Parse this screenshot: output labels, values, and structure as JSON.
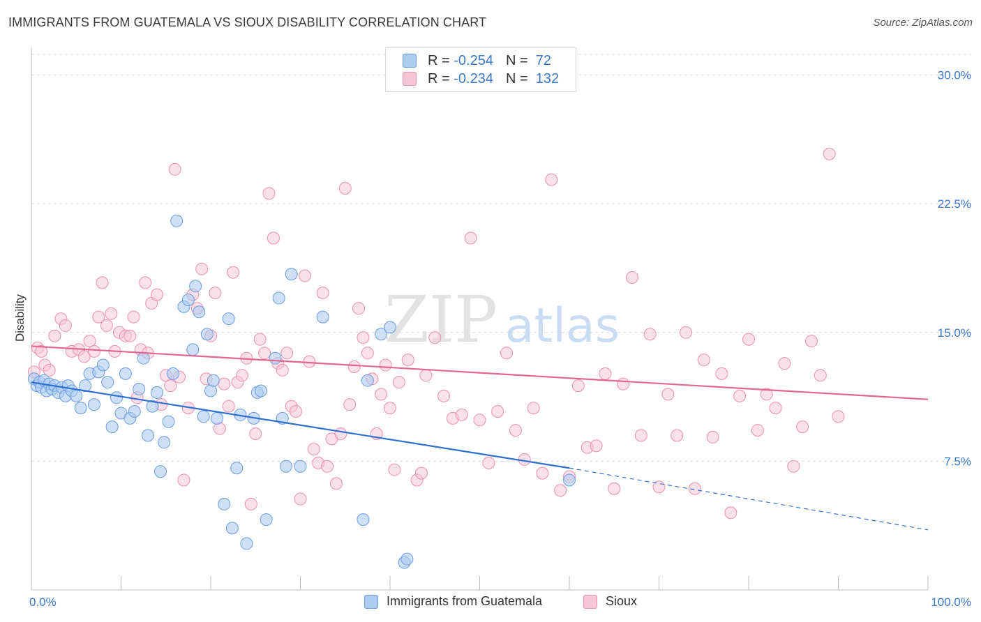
{
  "title": "IMMIGRANTS FROM GUATEMALA VS SIOUX DISABILITY CORRELATION CHART",
  "source": "Source: ZipAtlas.com",
  "watermark": {
    "zip": "ZIP",
    "atlas": "atlas"
  },
  "legend": {
    "rows": [
      {
        "r_label": "R =",
        "r_value": "-0.254",
        "n_label": "N =",
        "n_value": "72"
      },
      {
        "r_label": "R =",
        "r_value": "-0.234",
        "n_label": "N =",
        "n_value": "132"
      }
    ]
  },
  "colors": {
    "blue_fill": "#aecbf0",
    "blue_stroke": "#6a9be0",
    "blue_line": "#2f6fd0",
    "pink_fill": "#f6c6d6",
    "pink_stroke": "#ea8fae",
    "pink_line": "#e0668f",
    "axis_label": "#3a78c9"
  },
  "chart_data": {
    "type": "scatter",
    "title": "IMMIGRANTS FROM GUATEMALA VS SIOUX DISABILITY CORRELATION CHART",
    "xlabel": "",
    "ylabel": "Disability",
    "xlim": [
      0,
      100
    ],
    "ylim": [
      0,
      31.2
    ],
    "x_tick_labels": [
      "0.0%",
      "100.0%"
    ],
    "y_ticks": [
      7.5,
      15.0,
      22.5,
      30.0
    ],
    "y_tick_labels": [
      "7.5%",
      "15.0%",
      "22.5%",
      "30.0%"
    ],
    "grid": "horizontal dashed",
    "legend_position": "top-center",
    "series": [
      {
        "name": "Immigrants from Guatemala",
        "color": "#aecbf0",
        "trend": {
          "x0": 0,
          "y0": 12.1,
          "x1": 60,
          "y1": 7.1,
          "dashed_to_x": 100,
          "dashed_to_y": 3.5
        },
        "points": [
          [
            0.3,
            12.3
          ],
          [
            0.6,
            11.9
          ],
          [
            0.9,
            12.1
          ],
          [
            1.1,
            11.8
          ],
          [
            1.4,
            12.2
          ],
          [
            1.7,
            11.6
          ],
          [
            2.0,
            12.0
          ],
          [
            2.3,
            11.7
          ],
          [
            2.6,
            11.9
          ],
          [
            3.0,
            11.5
          ],
          [
            3.4,
            11.8
          ],
          [
            3.8,
            11.3
          ],
          [
            4.1,
            11.9
          ],
          [
            4.5,
            11.6
          ],
          [
            5.0,
            11.3
          ],
          [
            5.5,
            10.6
          ],
          [
            6.0,
            11.9
          ],
          [
            6.5,
            12.6
          ],
          [
            7.0,
            10.8
          ],
          [
            7.5,
            12.7
          ],
          [
            8.0,
            13.1
          ],
          [
            8.5,
            12.1
          ],
          [
            9.0,
            9.5
          ],
          [
            9.5,
            11.2
          ],
          [
            10.0,
            10.3
          ],
          [
            10.5,
            12.6
          ],
          [
            11.0,
            10.0
          ],
          [
            11.5,
            10.4
          ],
          [
            12.0,
            11.7
          ],
          [
            12.5,
            13.5
          ],
          [
            13.0,
            9.0
          ],
          [
            13.5,
            10.7
          ],
          [
            14.0,
            11.5
          ],
          [
            14.4,
            6.9
          ],
          [
            14.8,
            8.6
          ],
          [
            15.3,
            9.8
          ],
          [
            15.8,
            12.6
          ],
          [
            16.2,
            21.5
          ],
          [
            17.0,
            16.5
          ],
          [
            17.5,
            16.9
          ],
          [
            18.0,
            14.0
          ],
          [
            18.3,
            17.7
          ],
          [
            18.7,
            16.2
          ],
          [
            19.2,
            10.1
          ],
          [
            19.6,
            14.9
          ],
          [
            20.0,
            11.6
          ],
          [
            20.3,
            12.2
          ],
          [
            20.7,
            10.0
          ],
          [
            21.5,
            5.0
          ],
          [
            22.0,
            15.8
          ],
          [
            22.4,
            3.6
          ],
          [
            22.9,
            7.1
          ],
          [
            23.3,
            10.2
          ],
          [
            24.0,
            2.7
          ],
          [
            24.8,
            10.0
          ],
          [
            25.2,
            11.5
          ],
          [
            25.6,
            11.6
          ],
          [
            26.2,
            4.1
          ],
          [
            27.2,
            13.5
          ],
          [
            27.6,
            17.0
          ],
          [
            28.0,
            10.0
          ],
          [
            28.4,
            7.2
          ],
          [
            29.0,
            18.4
          ],
          [
            30.0,
            7.2
          ],
          [
            32.5,
            15.9
          ],
          [
            37.0,
            4.1
          ],
          [
            37.5,
            12.2
          ],
          [
            39.0,
            14.9
          ],
          [
            40.0,
            15.3
          ],
          [
            41.6,
            1.6
          ],
          [
            41.9,
            1.8
          ],
          [
            60.0,
            6.4
          ]
        ]
      },
      {
        "name": "Sioux",
        "color": "#f6c6d6",
        "trend": {
          "x0": 0,
          "y0": 14.2,
          "x1": 100,
          "y1": 11.1
        },
        "points": [
          [
            0.3,
            12.7
          ],
          [
            0.7,
            14.1
          ],
          [
            1.1,
            13.9
          ],
          [
            1.5,
            13.1
          ],
          [
            2.0,
            12.8
          ],
          [
            2.6,
            14.8
          ],
          [
            3.3,
            15.8
          ],
          [
            3.8,
            15.4
          ],
          [
            4.5,
            13.9
          ],
          [
            5.3,
            14.0
          ],
          [
            5.9,
            13.6
          ],
          [
            6.5,
            14.5
          ],
          [
            7.0,
            13.9
          ],
          [
            7.5,
            15.9
          ],
          [
            7.9,
            17.9
          ],
          [
            8.4,
            15.4
          ],
          [
            8.9,
            16.1
          ],
          [
            9.3,
            13.9
          ],
          [
            9.8,
            15.0
          ],
          [
            10.5,
            14.8
          ],
          [
            11.0,
            14.8
          ],
          [
            11.4,
            15.9
          ],
          [
            11.8,
            11.2
          ],
          [
            12.2,
            14.0
          ],
          [
            12.7,
            17.9
          ],
          [
            13.0,
            13.8
          ],
          [
            13.4,
            16.7
          ],
          [
            14.0,
            17.2
          ],
          [
            14.5,
            10.8
          ],
          [
            15.0,
            12.5
          ],
          [
            15.5,
            11.9
          ],
          [
            16.0,
            24.5
          ],
          [
            16.5,
            12.4
          ],
          [
            17.0,
            6.4
          ],
          [
            17.5,
            10.6
          ],
          [
            18.0,
            17.2
          ],
          [
            18.5,
            16.4
          ],
          [
            19.0,
            18.7
          ],
          [
            19.5,
            12.3
          ],
          [
            20.0,
            14.8
          ],
          [
            20.5,
            17.3
          ],
          [
            21.0,
            9.4
          ],
          [
            21.5,
            12.0
          ],
          [
            22.0,
            10.7
          ],
          [
            22.5,
            18.5
          ],
          [
            23.0,
            12.1
          ],
          [
            23.5,
            12.5
          ],
          [
            24.0,
            13.5
          ],
          [
            24.5,
            5.0
          ],
          [
            25.0,
            9.1
          ],
          [
            25.5,
            14.6
          ],
          [
            26.0,
            13.8
          ],
          [
            26.5,
            23.1
          ],
          [
            27.0,
            20.5
          ],
          [
            27.5,
            13.2
          ],
          [
            28.0,
            12.8
          ],
          [
            28.5,
            13.8
          ],
          [
            29.0,
            10.7
          ],
          [
            29.5,
            10.4
          ],
          [
            30.0,
            5.3
          ],
          [
            30.5,
            18.3
          ],
          [
            31.0,
            13.3
          ],
          [
            31.5,
            8.2
          ],
          [
            32.0,
            7.4
          ],
          [
            32.5,
            17.3
          ],
          [
            33.0,
            7.2
          ],
          [
            33.5,
            8.8
          ],
          [
            34.0,
            6.2
          ],
          [
            34.5,
            9.1
          ],
          [
            35.0,
            23.4
          ],
          [
            35.5,
            10.8
          ],
          [
            36.0,
            13.0
          ],
          [
            36.5,
            16.4
          ],
          [
            37.0,
            14.7
          ],
          [
            37.5,
            13.8
          ],
          [
            38.0,
            12.3
          ],
          [
            38.5,
            9.1
          ],
          [
            39.0,
            11.4
          ],
          [
            39.5,
            13.1
          ],
          [
            40.0,
            10.6
          ],
          [
            40.5,
            7.0
          ],
          [
            41.0,
            12.1
          ],
          [
            42.0,
            13.4
          ],
          [
            43.0,
            6.4
          ],
          [
            43.5,
            6.8
          ],
          [
            44.0,
            12.5
          ],
          [
            45.0,
            14.7
          ],
          [
            46.0,
            11.3
          ],
          [
            47.0,
            10.0
          ],
          [
            48.0,
            10.2
          ],
          [
            49.0,
            20.5
          ],
          [
            50.0,
            9.9
          ],
          [
            51.0,
            7.4
          ],
          [
            52.0,
            10.4
          ],
          [
            53.0,
            13.8
          ],
          [
            54.0,
            9.3
          ],
          [
            55.0,
            7.6
          ],
          [
            56.0,
            10.6
          ],
          [
            57.0,
            6.8
          ],
          [
            58.0,
            23.9
          ],
          [
            59.0,
            5.8
          ],
          [
            60.0,
            6.6
          ],
          [
            61.0,
            11.9
          ],
          [
            62.0,
            8.3
          ],
          [
            63.0,
            8.4
          ],
          [
            64.0,
            12.6
          ],
          [
            65.0,
            5.9
          ],
          [
            66.0,
            12.0
          ],
          [
            67.0,
            18.2
          ],
          [
            68.0,
            9.0
          ],
          [
            69.0,
            14.9
          ],
          [
            70.0,
            6.0
          ],
          [
            71.0,
            11.4
          ],
          [
            72.0,
            9.0
          ],
          [
            73.0,
            15.0
          ],
          [
            74.0,
            5.9
          ],
          [
            75.0,
            13.4
          ],
          [
            76.0,
            8.9
          ],
          [
            77.0,
            12.6
          ],
          [
            78.0,
            4.5
          ],
          [
            79.0,
            11.3
          ],
          [
            80.0,
            14.6
          ],
          [
            81.0,
            9.3
          ],
          [
            82.0,
            11.4
          ],
          [
            83.0,
            10.6
          ],
          [
            84.0,
            13.2
          ],
          [
            85.0,
            7.2
          ],
          [
            86.0,
            9.5
          ],
          [
            87.0,
            14.5
          ],
          [
            88.0,
            12.5
          ],
          [
            89.0,
            25.4
          ],
          [
            90.0,
            10.1
          ]
        ]
      }
    ]
  }
}
